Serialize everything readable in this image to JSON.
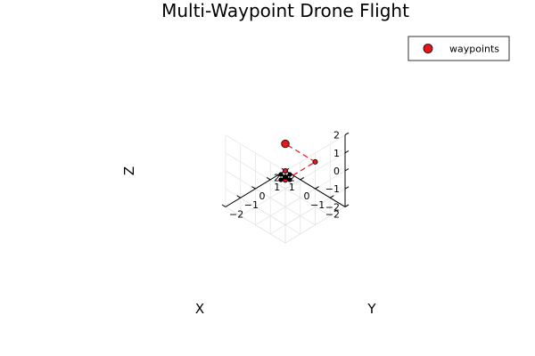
{
  "chart_data": {
    "type": "scatter",
    "projection": "3d-isometric",
    "title": "Multi-Waypoint Drone Flight",
    "xlabel": "X",
    "ylabel": "Y",
    "zlabel": "Z",
    "xlim": [
      -2,
      2
    ],
    "ylim": [
      -2,
      2
    ],
    "zlim": [
      -2,
      2
    ],
    "ticks": {
      "x": [
        "−2",
        "−1",
        "0",
        "1",
        "2"
      ],
      "y": [
        "−2",
        "−1",
        "0",
        "1",
        "2"
      ],
      "z": [
        "−2",
        "−1",
        "0",
        "1",
        "2"
      ]
    },
    "grid": true,
    "legend_position": "top-right",
    "series": [
      {
        "name": "waypoints",
        "color": "#e5161e",
        "line_style": "dashed",
        "points": [
          {
            "x": 0,
            "y": 0,
            "z": 0
          },
          {
            "x": -1,
            "y": -1,
            "z": 0.5
          },
          {
            "x": -1,
            "y": 1,
            "z": 0.5
          },
          {
            "x": 1,
            "y": 1,
            "z": 0.5
          }
        ]
      }
    ],
    "drone": {
      "x": 0,
      "y": 0,
      "z": 0,
      "color": "#000000",
      "icon": "quadcopter-icon"
    }
  }
}
